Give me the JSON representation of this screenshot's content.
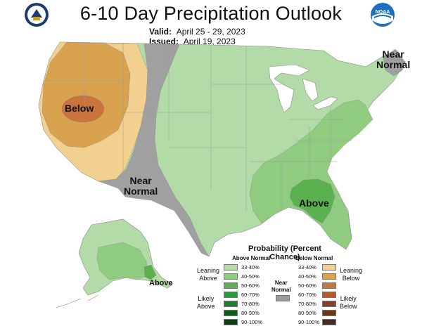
{
  "header": {
    "title": "6-10 Day Precipitation Outlook",
    "valid_label": "Valid:",
    "valid_value": "April 25 - 29, 2023",
    "issued_label": "Issued:",
    "issued_value": "April 19, 2023"
  },
  "map_labels": {
    "below": "Below",
    "near_normal_west_1": "Near",
    "near_normal_west_2": "Normal",
    "near_normal_ne_1": "Near",
    "near_normal_ne_2": "Normal",
    "above_se": "Above",
    "above_ak": "Above"
  },
  "legend": {
    "title": "Probability (Percent Chance)",
    "above_header": "Above Normal",
    "below_header": "Below Normal",
    "near_normal_1": "Near",
    "near_normal_2": "Normal",
    "leaning_above_1": "Leaning",
    "leaning_above_2": "Above",
    "likely_above_1": "Likely",
    "likely_above_2": "Above",
    "leaning_below_1": "Leaning",
    "leaning_below_2": "Below",
    "likely_below_1": "Likely",
    "likely_below_2": "Below",
    "above_rows": [
      "33-40%",
      "40-50%",
      "50-60%",
      "60-70%",
      "70-80%",
      "80-90%",
      "90-100%"
    ],
    "below_rows": [
      "33-40%",
      "40-50%",
      "50-60%",
      "60-70%",
      "70-80%",
      "80-90%",
      "90-100%"
    ],
    "above_colors": [
      "#b3dba8",
      "#8fcc7f",
      "#5bb04f",
      "#2e9a3d",
      "#1e7f2e",
      "#145a20",
      "#0c3d14"
    ],
    "below_colors": [
      "#f2d08f",
      "#d9a24e",
      "#c8743c",
      "#b35a34",
      "#8c3c2a",
      "#6b3a14",
      "#4a2a20"
    ],
    "near_color": "#9b9b9b"
  },
  "colors": {
    "near_normal": "#a0a0a0",
    "above_33": "#b3dba8",
    "above_40": "#8fcc7f",
    "above_50": "#5bb04f",
    "below_33": "#f2d08f",
    "below_40": "#d9a24e",
    "below_50": "#c8743c"
  }
}
